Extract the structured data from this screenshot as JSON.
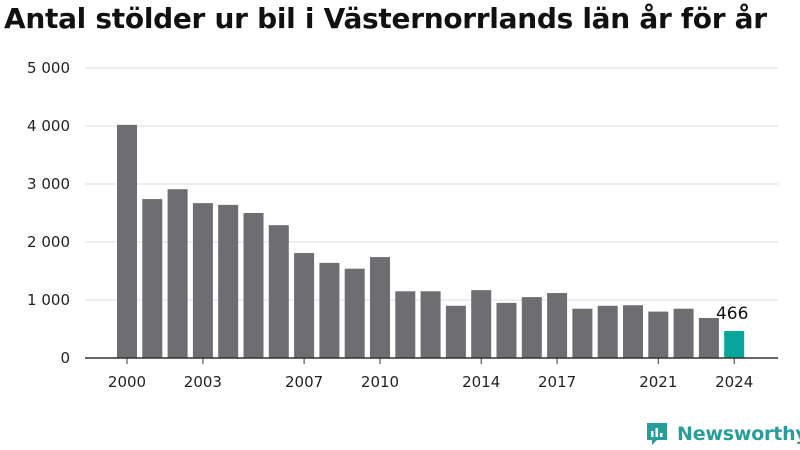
{
  "chart_data": {
    "type": "bar",
    "title": "Antal stölder ur bil i Västernorrlands län år för år",
    "xlabel": "",
    "ylabel": "",
    "ylim": [
      0,
      5000
    ],
    "yticks": [
      {
        "value": 0,
        "label": "0"
      },
      {
        "value": 1000,
        "label": "1 000"
      },
      {
        "value": 2000,
        "label": "2 000"
      },
      {
        "value": 3000,
        "label": "3 000"
      },
      {
        "value": 4000,
        "label": "4 000"
      },
      {
        "value": 5000,
        "label": "5 000"
      }
    ],
    "categories": [
      "2000",
      "2001",
      "2002",
      "2003",
      "2004",
      "2005",
      "2006",
      "2007",
      "2008",
      "2009",
      "2010",
      "2011",
      "2012",
      "2013",
      "2014",
      "2015",
      "2016",
      "2017",
      "2018",
      "2019",
      "2020",
      "2021",
      "2022",
      "2023",
      "2024"
    ],
    "values": [
      4020,
      2740,
      2910,
      2670,
      2640,
      2500,
      2290,
      1810,
      1640,
      1540,
      1740,
      1150,
      1150,
      900,
      1170,
      950,
      1050,
      1120,
      850,
      900,
      910,
      800,
      850,
      690,
      466
    ],
    "xtick_labels": [
      "2000",
      "2003",
      "2007",
      "2010",
      "2014",
      "2017",
      "2021",
      "2024"
    ],
    "highlight": {
      "category": "2024",
      "label": "466"
    },
    "grid": true,
    "colors": {
      "bar": "#6d6d72",
      "highlight": "#0aa59a",
      "grid": "#dddddd",
      "axis": "#333333"
    }
  },
  "brand": {
    "name": "Newsworthy",
    "icon": "newsworthy-chart-icon",
    "color": "#2a9d9a"
  }
}
